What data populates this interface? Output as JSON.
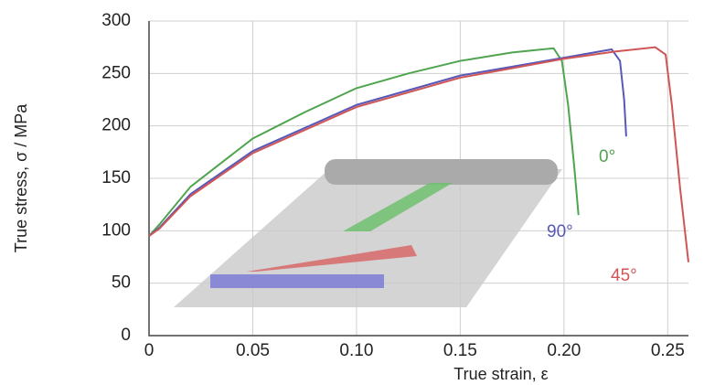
{
  "chart_data": {
    "type": "line",
    "xlabel": "True strain, ε",
    "ylabel": "True stress, σ / MPa",
    "xlim": [
      0,
      0.26
    ],
    "ylim": [
      0,
      300
    ],
    "xticks": [
      0,
      0.05,
      {
        "value": 0.1,
        "label": "0.10"
      },
      0.15,
      {
        "value": 0.2,
        "label": "0.20"
      },
      0.25
    ],
    "yticks": [
      0,
      50,
      100,
      150,
      200,
      250,
      300
    ],
    "grid": true,
    "series": [
      {
        "name": "0°",
        "color": "#4fa44f",
        "x": [
          0,
          0.005,
          0.02,
          0.05,
          0.075,
          0.1,
          0.125,
          0.15,
          0.175,
          0.195,
          0.199,
          0.202,
          0.205,
          0.207
        ],
        "values": [
          95,
          106,
          142,
          188,
          213,
          236,
          250,
          262,
          270,
          274,
          262,
          220,
          160,
          115
        ]
      },
      {
        "name": "90°",
        "color": "#5858b8",
        "x": [
          0,
          0.005,
          0.02,
          0.05,
          0.1,
          0.15,
          0.2,
          0.223,
          0.227,
          0.229,
          0.23
        ],
        "values": [
          95,
          103,
          135,
          176,
          220,
          248,
          265,
          273,
          262,
          225,
          190
        ]
      },
      {
        "name": "45°",
        "color": "#d05555",
        "x": [
          0,
          0.005,
          0.02,
          0.05,
          0.1,
          0.15,
          0.2,
          0.225,
          0.244,
          0.249,
          0.252,
          0.256,
          0.26
        ],
        "values": [
          95,
          102,
          133,
          174,
          218,
          246,
          264,
          271,
          275,
          268,
          220,
          140,
          70
        ]
      }
    ]
  }
}
